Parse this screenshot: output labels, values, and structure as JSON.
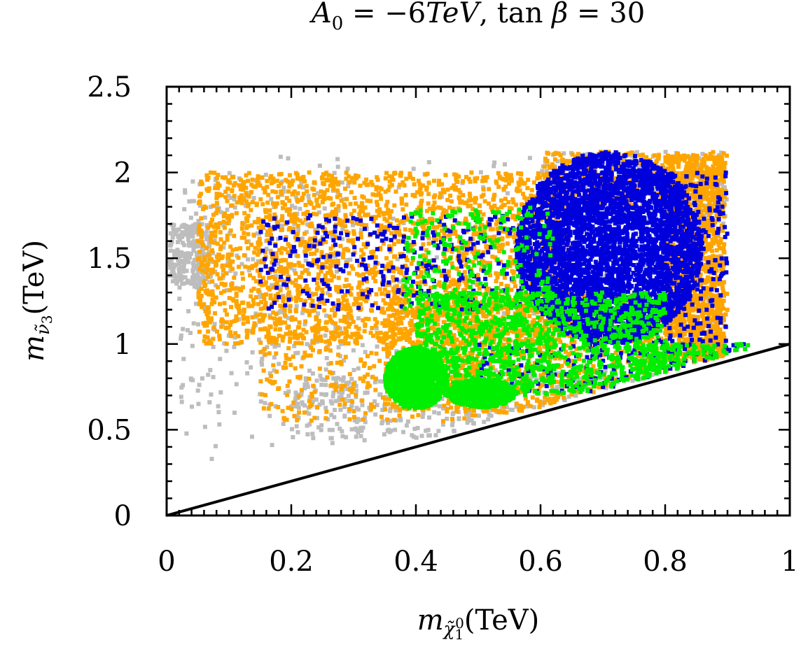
{
  "chart_data": {
    "type": "scatter",
    "title_parts": [
      "A",
      "0",
      " = −6",
      "TeV",
      ", tan ",
      "β",
      " = 30"
    ],
    "xlabel_parts": [
      "m",
      "χ̃",
      "1",
      "0",
      "(TeV)"
    ],
    "ylabel_parts": [
      "m",
      "ν̃",
      "3",
      "(TeV)"
    ],
    "xlim": [
      0,
      1
    ],
    "ylim": [
      0,
      2.5
    ],
    "xticks": [
      "0",
      "0.2",
      "0.4",
      "0.6",
      "0.8",
      "1"
    ],
    "xtick_values": [
      0,
      0.2,
      0.4,
      0.6,
      0.8,
      1
    ],
    "yticks": [
      "0",
      "0.5",
      "1",
      "1.5",
      "2",
      "2.5"
    ],
    "ytick_values": [
      0,
      0.5,
      1,
      1.5,
      2,
      2.5
    ],
    "reference_line": {
      "name": "m_sneutrino = m_neutralino",
      "x": [
        0,
        1
      ],
      "y": [
        0,
        1
      ],
      "color": "#000000"
    },
    "series": [
      {
        "name": "gray",
        "color": "#bdbdbd",
        "regions": [
          {
            "x": [
              0.005,
              0.07
            ],
            "y": [
              1.35,
              1.7
            ],
            "n": 260
          },
          {
            "x": [
              0.02,
              0.3
            ],
            "y": [
              0.6,
              2.0
            ],
            "n": 280
          },
          {
            "x": [
              0.2,
              0.8
            ],
            "y": [
              0.45,
              0.85
            ],
            "n": 360,
            "above_line": true
          },
          {
            "x": [
              0.6,
              0.9
            ],
            "y": [
              1.7,
              2.12
            ],
            "n": 180
          },
          {
            "x": [
              0.02,
              0.9
            ],
            "y": [
              0.3,
              2.1
            ],
            "n": 260,
            "above_line": true
          }
        ]
      },
      {
        "name": "orange",
        "color": "#ffa500",
        "regions": [
          {
            "x": [
              0.05,
              0.65
            ],
            "y": [
              1.0,
              2.0
            ],
            "n": 2400,
            "above_line": true
          },
          {
            "x": [
              0.15,
              0.5
            ],
            "y": [
              0.55,
              1.1
            ],
            "n": 300,
            "above_line": true
          },
          {
            "x": [
              0.35,
              0.9
            ],
            "y": [
              0.6,
              1.3
            ],
            "n": 1300,
            "above_line": true
          },
          {
            "x": [
              0.8,
              0.895
            ],
            "y": [
              0.9,
              2.1
            ],
            "n": 1300,
            "above_line": true
          },
          {
            "x": [
              0.6,
              0.9
            ],
            "y": [
              1.8,
              2.12
            ],
            "n": 400
          }
        ]
      },
      {
        "name": "blue",
        "color": "#0000dd",
        "regions": [
          {
            "x": [
              0.56,
              0.86
            ],
            "y": [
              1.0,
              2.12
            ],
            "n": 5200,
            "ellipse": true,
            "above_line": true
          },
          {
            "x": [
              0.15,
              0.6
            ],
            "y": [
              1.2,
              1.75
            ],
            "n": 320
          },
          {
            "x": [
              0.78,
              0.9
            ],
            "y": [
              0.85,
              2.0
            ],
            "n": 260,
            "above_line": true
          },
          {
            "x": [
              0.5,
              0.95
            ],
            "y": [
              0.72,
              1.0
            ],
            "n": 120,
            "above_line": true
          }
        ]
      },
      {
        "name": "green",
        "color": "#00ee00",
        "regions": [
          {
            "x": [
              0.35,
              0.45
            ],
            "y": [
              0.62,
              0.98
            ],
            "n": 1100,
            "ellipse": true,
            "above_line": true
          },
          {
            "x": [
              0.45,
              0.56
            ],
            "y": [
              0.63,
              0.8
            ],
            "n": 700,
            "ellipse": true,
            "above_line": true
          },
          {
            "x": [
              0.4,
              0.8
            ],
            "y": [
              0.7,
              1.3
            ],
            "n": 1200,
            "above_line": true
          },
          {
            "x": [
              0.38,
              0.62
            ],
            "y": [
              1.2,
              1.8
            ],
            "n": 260
          },
          {
            "x": [
              0.75,
              0.95
            ],
            "y": [
              0.78,
              1.0
            ],
            "n": 160,
            "above_line": true
          }
        ]
      }
    ]
  }
}
